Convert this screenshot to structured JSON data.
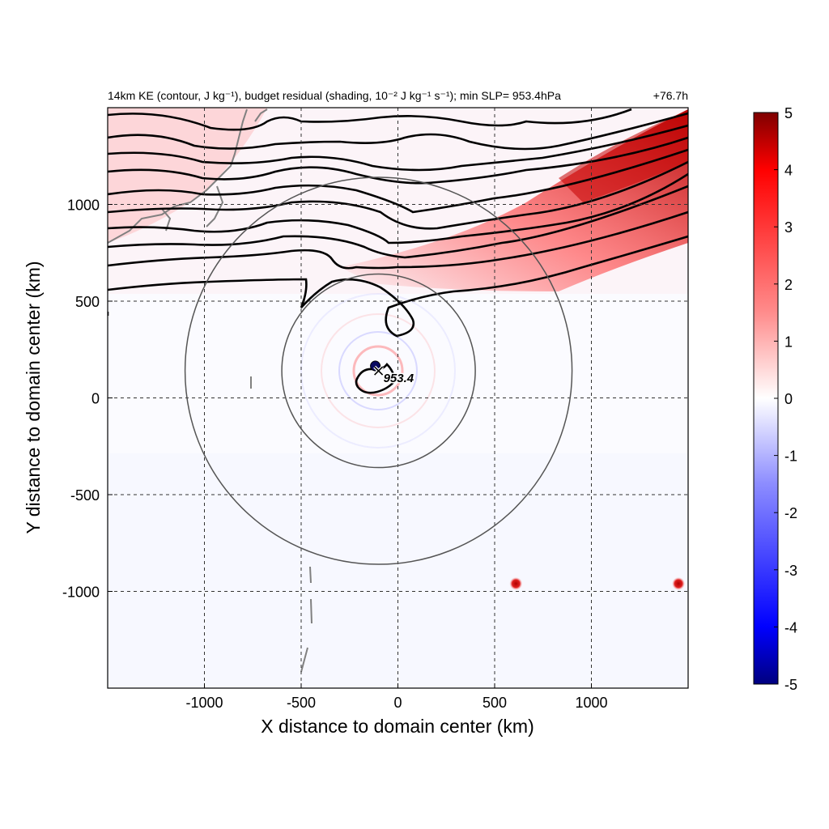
{
  "chart_data": {
    "type": "heatmap",
    "title_left": "14km KE (contour, J kg⁻¹), budget residual (shading, 10⁻² J kg⁻¹ s⁻¹); min SLP= 953.4hPa",
    "title_right": "+76.7h",
    "xlabel": "X distance to domain center (km)",
    "ylabel": "Y distance to domain center (km)",
    "xlim": [
      -1500,
      1500
    ],
    "ylim": [
      -1500,
      1500
    ],
    "xticks": [
      -1000,
      -500,
      0,
      500,
      1000
    ],
    "yticks": [
      -1000,
      -500,
      0,
      500,
      1000
    ],
    "grid": true,
    "grid_style": "dashed",
    "colorbar": {
      "min": -5,
      "max": 5,
      "ticks": [
        -5,
        -4,
        -3,
        -2,
        -1,
        0,
        1,
        2,
        3,
        4,
        5
      ],
      "colormap": [
        "#00007f",
        "#0000ff",
        "#8c8cff",
        "#ffffff",
        "#ff8c8c",
        "#ff0000",
        "#7f0000"
      ]
    },
    "storm_center": {
      "x": -100,
      "y": 140,
      "label": "953.4"
    },
    "range_rings": [
      {
        "center_x": -100,
        "center_y": 140,
        "radius": 500
      },
      {
        "center_x": -100,
        "center_y": 140,
        "radius": 1000
      }
    ],
    "hotspots": [
      {
        "x": 610,
        "y": -960,
        "value": 4.5
      },
      {
        "x": 1450,
        "y": -960,
        "value": 5
      }
    ],
    "colors": {
      "contour": "#000000",
      "ring": "#555555",
      "coastline": "#808080"
    }
  }
}
